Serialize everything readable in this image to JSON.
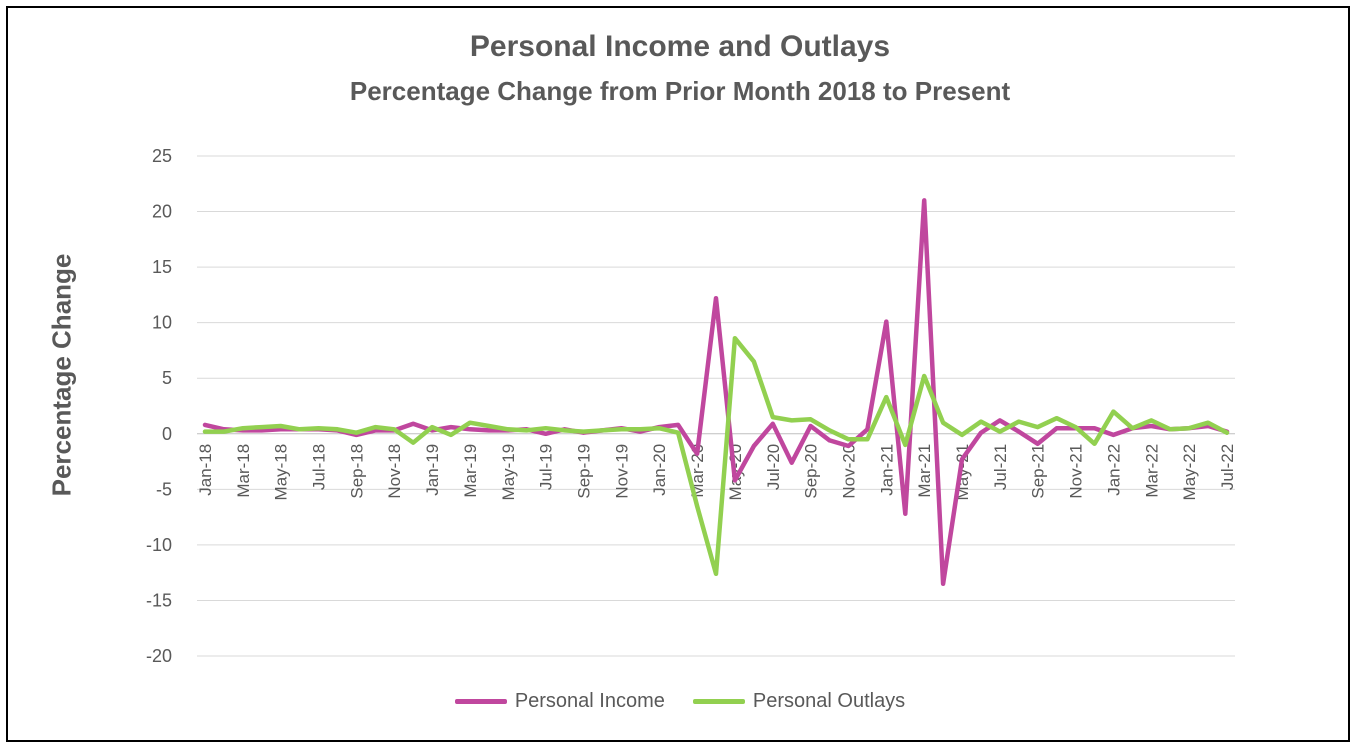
{
  "chart_data": {
    "type": "line",
    "title": "Personal Income and Outlays",
    "subtitle": "Percentage Change from Prior Month 2018 to Present",
    "ylabel": "Percentage Change",
    "xlabel": "",
    "ylim": [
      -20,
      25
    ],
    "yticks": [
      25,
      20,
      15,
      10,
      5,
      0,
      -5,
      -10,
      -15,
      -20
    ],
    "grid": true,
    "legend_position": "bottom",
    "x_tick_labels": [
      "Jan-18",
      "Mar-18",
      "May-18",
      "Jul-18",
      "Sep-18",
      "Nov-18",
      "Jan-19",
      "Mar-19",
      "May-19",
      "Jul-19",
      "Sep-19",
      "Nov-19",
      "Jan-20",
      "Mar-20",
      "May-20",
      "Jul-20",
      "Sep-20",
      "Nov-20",
      "Jan-21",
      "Mar-21",
      "May-21",
      "Jul-21",
      "Sep-21",
      "Nov-21",
      "Jan-22",
      "Mar-22",
      "May-22",
      "Jul-22"
    ],
    "categories": [
      "Jan-18",
      "Feb-18",
      "Mar-18",
      "Apr-18",
      "May-18",
      "Jun-18",
      "Jul-18",
      "Aug-18",
      "Sep-18",
      "Oct-18",
      "Nov-18",
      "Dec-18",
      "Jan-19",
      "Feb-19",
      "Mar-19",
      "Apr-19",
      "May-19",
      "Jun-19",
      "Jul-19",
      "Aug-19",
      "Sep-19",
      "Oct-19",
      "Nov-19",
      "Dec-19",
      "Jan-20",
      "Feb-20",
      "Mar-20",
      "Apr-20",
      "May-20",
      "Jun-20",
      "Jul-20",
      "Aug-20",
      "Sep-20",
      "Oct-20",
      "Nov-20",
      "Dec-20",
      "Jan-21",
      "Feb-21",
      "Mar-21",
      "Apr-21",
      "May-21",
      "Jun-21",
      "Jul-21",
      "Aug-21",
      "Sep-21",
      "Oct-21",
      "Nov-21",
      "Dec-21",
      "Jan-22",
      "Feb-22",
      "Mar-22",
      "Apr-22",
      "May-22",
      "Jun-22",
      "Jul-22"
    ],
    "series": [
      {
        "name": "Personal Income",
        "color": "#C0479E",
        "values": [
          0.8,
          0.4,
          0.3,
          0.3,
          0.4,
          0.4,
          0.4,
          0.3,
          -0.1,
          0.3,
          0.3,
          0.9,
          0.3,
          0.6,
          0.4,
          0.3,
          0.3,
          0.4,
          0.0,
          0.4,
          0.1,
          0.3,
          0.5,
          0.2,
          0.6,
          0.8,
          -1.8,
          12.2,
          -4.2,
          -1.1,
          0.9,
          -2.6,
          0.7,
          -0.6,
          -1.1,
          0.4,
          10.1,
          -7.2,
          21.0,
          -13.5,
          -2.3,
          0.1,
          1.2,
          0.2,
          -0.9,
          0.5,
          0.5,
          0.5,
          -0.1,
          0.5,
          0.7,
          0.4,
          0.5,
          0.7,
          0.2
        ]
      },
      {
        "name": "Personal Outlays",
        "color": "#92D050",
        "values": [
          0.2,
          0.2,
          0.5,
          0.6,
          0.7,
          0.4,
          0.5,
          0.4,
          0.1,
          0.6,
          0.4,
          -0.8,
          0.6,
          -0.1,
          1.0,
          0.7,
          0.4,
          0.3,
          0.5,
          0.3,
          0.2,
          0.3,
          0.4,
          0.4,
          0.5,
          0.1,
          -6.5,
          -12.6,
          8.6,
          6.5,
          1.5,
          1.2,
          1.3,
          0.3,
          -0.5,
          -0.5,
          3.3,
          -1.0,
          5.2,
          1.0,
          -0.1,
          1.1,
          0.2,
          1.1,
          0.6,
          1.4,
          0.6,
          -0.9,
          2.0,
          0.5,
          1.2,
          0.4,
          0.5,
          1.0,
          0.1
        ]
      }
    ]
  }
}
